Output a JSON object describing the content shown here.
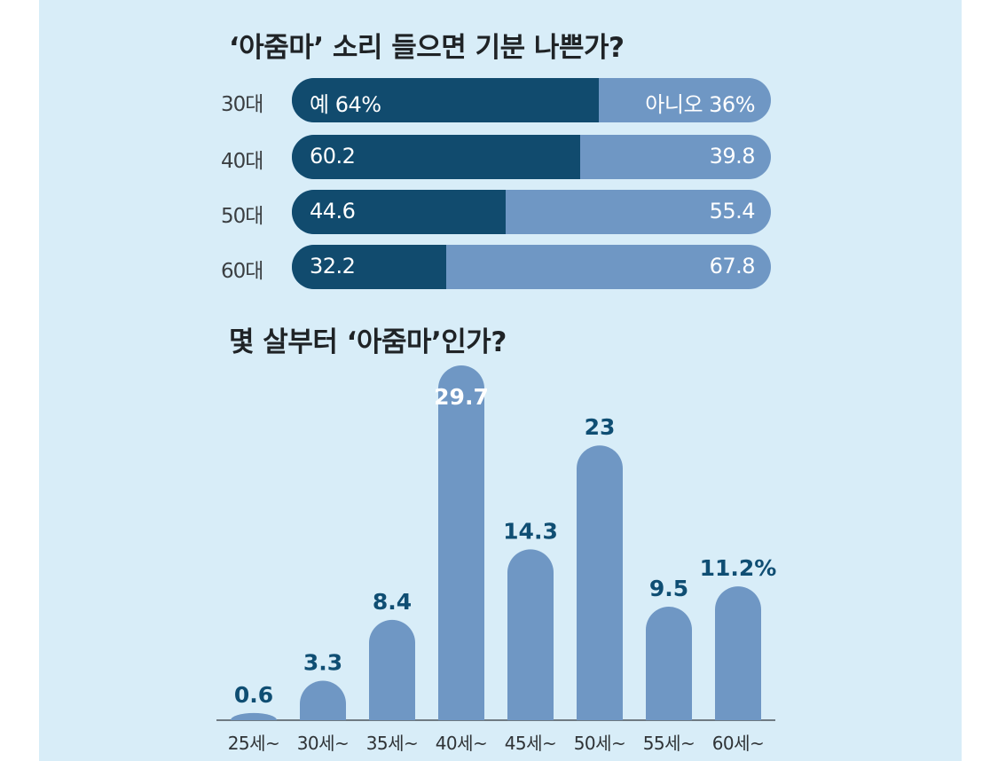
{
  "chart_data": [
    {
      "type": "bar",
      "orientation": "horizontal-stacked",
      "title": "‘아줌마’ 소리 들으면 기분 나쁜가?",
      "categories": [
        "30대",
        "40대",
        "50대",
        "60대"
      ],
      "series": [
        {
          "name": "예",
          "values": [
            64,
            60.2,
            44.6,
            32.2
          ],
          "color": "#114b6e"
        },
        {
          "name": "아니오",
          "values": [
            36,
            39.8,
            55.4,
            67.8
          ],
          "color": "#6f97c4"
        }
      ],
      "value_labels": {
        "yes": [
          "예 64%",
          "60.2",
          "44.6",
          "32.2"
        ],
        "no": [
          "아니오 36%",
          "39.8",
          "55.4",
          "67.8"
        ]
      }
    },
    {
      "type": "bar",
      "title": "몇 살부터 ‘아줌마’인가?",
      "categories": [
        "25세~",
        "30세~",
        "35세~",
        "40세~",
        "45세~",
        "50세~",
        "55세~",
        "60세~"
      ],
      "values": [
        0.6,
        3.3,
        8.4,
        29.7,
        14.3,
        23,
        9.5,
        11.2
      ],
      "value_labels": [
        "0.6",
        "3.3",
        "8.4",
        "29.7",
        "14.3",
        "23",
        "9.5",
        "11.2%"
      ],
      "unit": "%",
      "color": "#6f97c4",
      "ylim": [
        0,
        29.7
      ]
    }
  ]
}
